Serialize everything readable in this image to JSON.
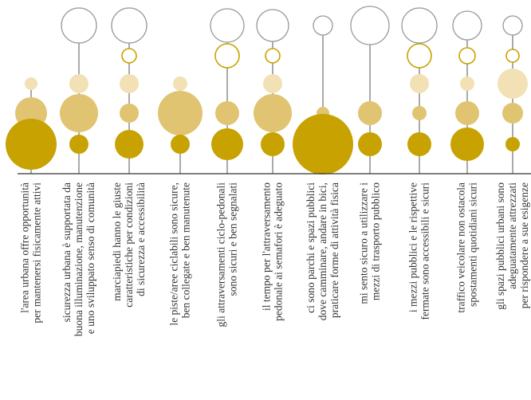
{
  "chart_data": {
    "type": "bubble-matrix",
    "title": "",
    "colors": {
      "dark": "#c7a200",
      "mid": "#e0c471",
      "light": "#f1e1b5",
      "hollow_gold": "#c7a200",
      "hollow_grey": "#999999",
      "axis": "#333333",
      "stem": "#555555",
      "text": "#333333"
    },
    "levels": [
      "hollow",
      "hollow-gold",
      "light",
      "mid",
      "dark"
    ],
    "categories": [
      {
        "label": [
          "l'area urbana offre opportunità",
          "per mantenersi fisicamente attivi"
        ],
        "values": [
          0,
          0,
          8,
          20,
          32
        ]
      },
      {
        "label": [
          "sicurezza urbana è supportata da",
          "buona illuminazione, manutenzione",
          "e uno sviluppato senso di comunità"
        ],
        "values": [
          22,
          0,
          12,
          24,
          12
        ]
      },
      {
        "label": [
          "marciapiedi hanno le giuste",
          "caratteristiche per condizioni",
          "di sicurezza e accessibilità"
        ],
        "values": [
          22,
          9,
          12,
          12,
          18
        ]
      },
      {
        "label": [
          "le piste/aree ciclabili sono sicure,",
          "ben collegate e ben manutenute"
        ],
        "values": [
          0,
          0,
          9,
          28,
          12
        ]
      },
      {
        "label": [
          "gli attraversamenti ciclo-pedonali",
          "sono sicuri e ben segnalati"
        ],
        "values": [
          21,
          15,
          0,
          15,
          20
        ]
      },
      {
        "label": [
          "il tempo per l'attraversamento",
          "pedonale ai semafori è adeguato"
        ],
        "values": [
          20,
          9,
          12,
          24,
          15
        ]
      },
      {
        "label": [
          "ci sono parchi e spazi pubblici",
          "dove camminare, andare in bici,",
          "praticare forme di attività fisica"
        ],
        "values": [
          12,
          0,
          0,
          8,
          38
        ]
      },
      {
        "label": [
          "mi sento sicuro a utilizzare i",
          "mezzi di trasporto pubblico"
        ],
        "values": [
          24,
          0,
          0,
          15,
          15
        ]
      },
      {
        "label": [
          "i mezzi pubblici e le rispettive",
          "fermate sono accessibili e sicuri"
        ],
        "values": [
          22,
          15,
          12,
          9,
          15
        ]
      },
      {
        "label": [
          "traffico veicolare non ostacola",
          "spostamenti quotidiani sicuri"
        ],
        "values": [
          18,
          10,
          9,
          15,
          21
        ]
      },
      {
        "label": [
          "gli spazi pubblici urbani sono",
          "adeguatamente attrezzati",
          "per rispondere a sue esigenze"
        ],
        "values": [
          12,
          8,
          19,
          13,
          9
        ]
      }
    ]
  }
}
